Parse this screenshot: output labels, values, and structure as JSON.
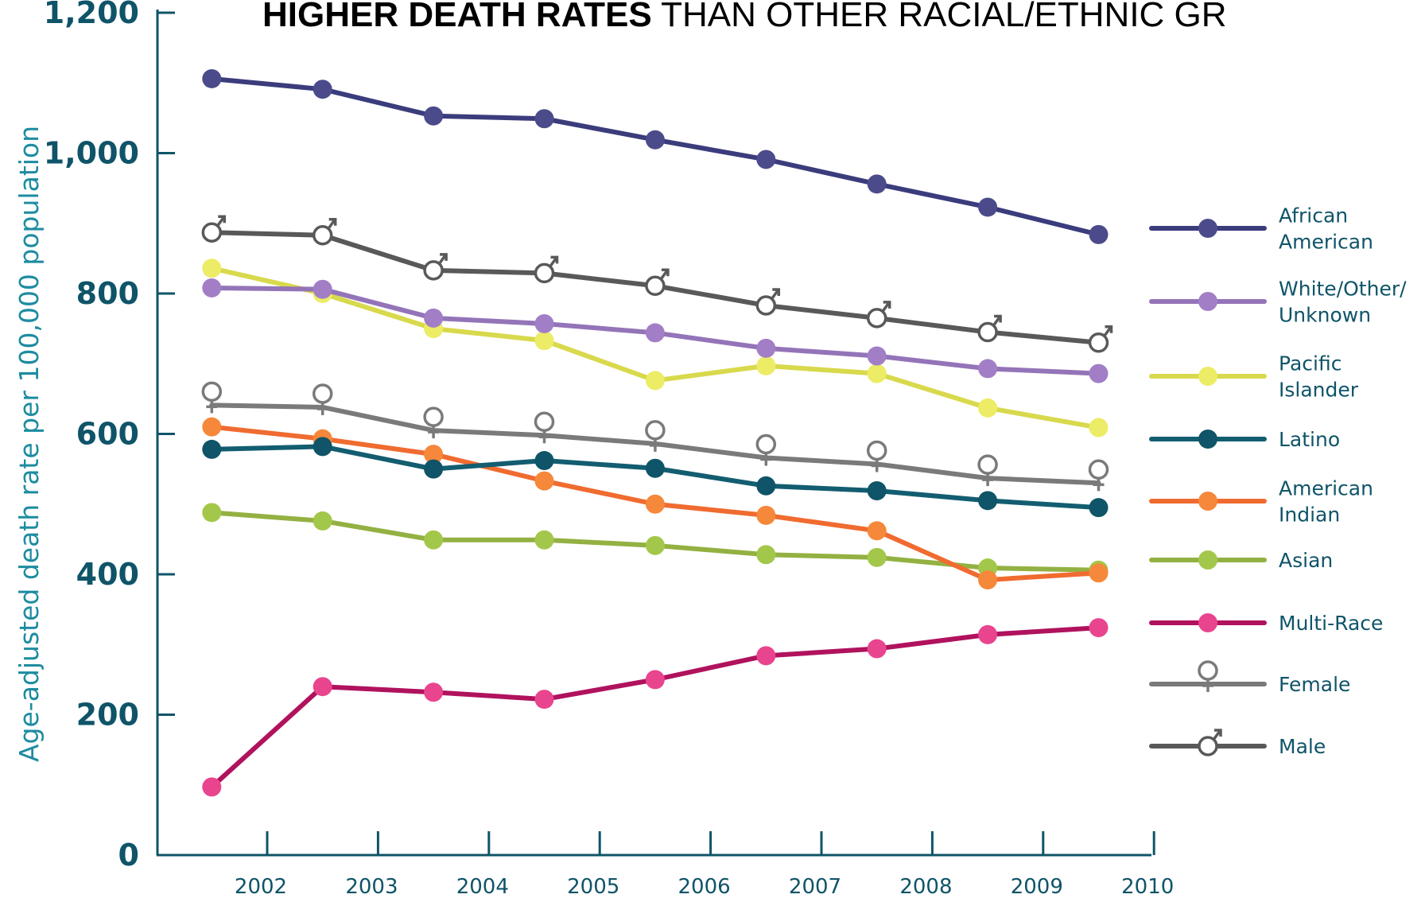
{
  "chart_data": {
    "type": "line",
    "title_bold": "HIGHER DEATH RATES",
    "title_rest": " THAN OTHER RACIAL/ETHNIC GR",
    "ylabel": "Age-adjusted death rate per 100,000 population",
    "xlabel": "",
    "ylim": [
      0,
      1200
    ],
    "y_ticks": [
      "0",
      "200",
      "400",
      "600",
      "800",
      "1,000",
      "1,200"
    ],
    "y_tick_values": [
      0,
      200,
      400,
      600,
      800,
      1000,
      1200
    ],
    "x_ticks": [
      "2002",
      "2003",
      "2004",
      "2005",
      "2006",
      "2007",
      "2008",
      "2009",
      "2010"
    ],
    "x": [
      2001.5,
      2002.5,
      2003.5,
      2004.5,
      2005.5,
      2006.5,
      2007.5,
      2008.5,
      2009.5
    ],
    "legend_position": "right",
    "series": [
      {
        "key": "african_american",
        "name": "African American",
        "legend": [
          "African",
          "American"
        ],
        "color": "#3b3c7c",
        "marker": "dot",
        "values": [
          1106,
          1091,
          1053,
          1049,
          1019,
          991,
          956,
          923,
          884
        ]
      },
      {
        "key": "male",
        "name": "Male",
        "legend": [
          "Male"
        ],
        "color": "#595959",
        "marker": "male",
        "values": [
          887,
          883,
          833,
          829,
          811,
          783,
          765,
          745,
          730
        ]
      },
      {
        "key": "white_other",
        "name": "White/Other/ Unknown",
        "legend": [
          "White/Other/",
          "Unknown"
        ],
        "color": "#9474b8",
        "marker": "dot",
        "values": [
          808,
          806,
          765,
          757,
          744,
          722,
          711,
          693,
          686
        ]
      },
      {
        "key": "pacific_islander",
        "name": "Pacific Islander",
        "legend": [
          "Pacific",
          "Islander"
        ],
        "color": "#d8d94c",
        "marker": "dot",
        "values": [
          836,
          800,
          750,
          733,
          676,
          697,
          686,
          637,
          609
        ]
      },
      {
        "key": "female",
        "name": "Female",
        "legend": [
          "Female"
        ],
        "color": "#7a7a7a",
        "marker": "female",
        "values": [
          641,
          638,
          605,
          598,
          586,
          566,
          557,
          537,
          530
        ]
      },
      {
        "key": "latino",
        "name": "Latino",
        "legend": [
          "Latino"
        ],
        "color": "#135d70",
        "marker": "dot",
        "values": [
          578,
          582,
          550,
          562,
          551,
          526,
          519,
          505,
          495
        ]
      },
      {
        "key": "american_indian",
        "name": "American Indian",
        "legend": [
          "American",
          "Indian"
        ],
        "color": "#f06b30",
        "marker": "dot",
        "values": [
          610,
          593,
          571,
          533,
          500,
          484,
          462,
          392,
          402
        ]
      },
      {
        "key": "asian",
        "name": "Asian",
        "legend": [
          "Asian"
        ],
        "color": "#93b142",
        "marker": "dot",
        "values": [
          488,
          476,
          449,
          449,
          441,
          428,
          424,
          409,
          406
        ]
      },
      {
        "key": "multi_race",
        "name": "Multi-Race",
        "legend": [
          "Multi-Race"
        ],
        "color": "#b0125e",
        "marker_color": "#e9448e",
        "marker": "dot",
        "values": [
          97,
          240,
          232,
          222,
          250,
          284,
          294,
          314,
          324
        ]
      }
    ],
    "legend_order": [
      "african_american",
      "white_other",
      "pacific_islander",
      "latino",
      "american_indian",
      "asian",
      "multi_race",
      "female",
      "male"
    ],
    "marker_colors": {
      "african_american": "#4b4b8b",
      "white_other": "#a27ec6",
      "pacific_islander": "#ecec66",
      "latino": "#0f5468",
      "american_indian": "#f5883a",
      "asian": "#a3c74a",
      "multi_race": "#e9448e"
    }
  }
}
